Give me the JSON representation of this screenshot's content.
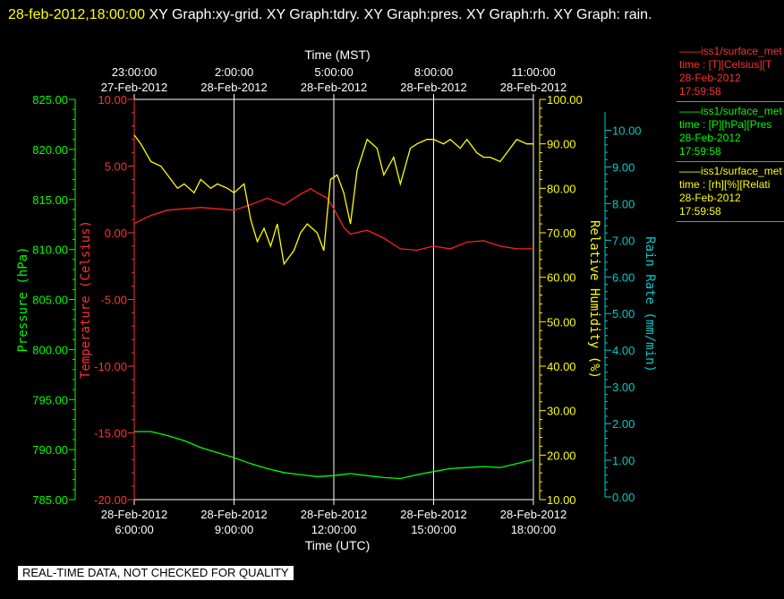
{
  "title": {
    "date": "28-feb-2012,18:00:00",
    "text": "XY Graph:xy-grid.  XY Graph:tdry.  XY Graph:pres.  XY Graph:rh.  XY Graph: rain."
  },
  "footer": "REAL-TIME DATA, NOT CHECKED FOR QUALITY",
  "legend": [
    {
      "lines": [
        "——iss1/surface_met",
        "time : [T][Celsius][T",
        "28-Feb-2012",
        "17:59:58"
      ],
      "color": "#ff3030"
    },
    {
      "lines": [
        "——iss1/surface_met",
        "time : [P][hPa][Pres",
        "28-Feb-2012",
        "17:59:58"
      ],
      "color": "#00ff00"
    },
    {
      "lines": [
        "——iss1/surface_met",
        "time : [rh][%][Relati",
        "28-Feb-2012",
        "17:59:58"
      ],
      "color": "#ffff00"
    }
  ],
  "chart_data": {
    "type": "line",
    "x_top_label": "Time (MST)",
    "x_bottom_label": "Time (UTC)",
    "x_range_utc_hours": [
      6,
      18
    ],
    "x_ticks_bottom": [
      {
        "hour": 6,
        "date": "28-Feb-2012",
        "time": "6:00:00"
      },
      {
        "hour": 9,
        "date": "28-Feb-2012",
        "time": "9:00:00"
      },
      {
        "hour": 12,
        "date": "28-Feb-2012",
        "time": "12:00:00"
      },
      {
        "hour": 15,
        "date": "28-Feb-2012",
        "time": "15:00:00"
      },
      {
        "hour": 18,
        "date": "28-Feb-2012",
        "time": "18:00:00"
      }
    ],
    "x_ticks_top": [
      {
        "hour": 6,
        "time": "23:00:00",
        "date": "27-Feb-2012"
      },
      {
        "hour": 9,
        "time": "2:00:00",
        "date": "28-Feb-2012"
      },
      {
        "hour": 12,
        "time": "5:00:00",
        "date": "28-Feb-2012"
      },
      {
        "hour": 15,
        "time": "8:00:00",
        "date": "28-Feb-2012"
      },
      {
        "hour": 18,
        "time": "11:00:00",
        "date": "28-Feb-2012"
      }
    ],
    "grid": true,
    "axes": {
      "pressure": {
        "label": "Pressure (hPa)",
        "range": [
          785,
          825
        ],
        "ticks": [
          "785.00",
          "790.00",
          "795.00",
          "800.00",
          "805.00",
          "810.00",
          "815.00",
          "820.00",
          "825.00"
        ],
        "color": "#00ff00",
        "side": "left"
      },
      "temperature": {
        "label": "Temperature (Celsius)",
        "range": [
          -20,
          10
        ],
        "ticks": [
          "-20.00",
          "-15.00",
          "-10.00",
          "-5.00",
          "0.00",
          "5.00",
          "10.00"
        ],
        "color": "#ff3030",
        "side": "left"
      },
      "rh": {
        "label": "Relative Humidity (%)",
        "range": [
          10,
          100
        ],
        "ticks": [
          "10.00",
          "20.00",
          "30.00",
          "40.00",
          "50.00",
          "60.00",
          "70.00",
          "80.00",
          "90.00",
          "100.00"
        ],
        "color": "#ffff00",
        "side": "right"
      },
      "rain": {
        "label": "Rain Rate (mm/min)",
        "range": [
          0,
          10.5
        ],
        "ticks": [
          "0.00",
          "1.00",
          "2.00",
          "3.00",
          "4.00",
          "5.00",
          "6.00",
          "7.00",
          "8.00",
          "9.00",
          "10.00"
        ],
        "color": "#00cccc",
        "side": "right"
      }
    },
    "series": [
      {
        "axis": "temperature",
        "color": "#ff2020",
        "x": [
          6.0,
          6.5,
          7.0,
          7.5,
          8.0,
          8.5,
          9.0,
          9.5,
          10.0,
          10.5,
          11.0,
          11.3,
          11.5,
          11.8,
          12.0,
          12.3,
          12.5,
          13.0,
          13.5,
          14.0,
          14.5,
          15.0,
          15.5,
          16.0,
          16.5,
          17.0,
          17.5,
          18.0
        ],
        "y": [
          0.7,
          1.3,
          1.7,
          1.8,
          1.9,
          1.8,
          1.7,
          2.1,
          2.6,
          2.1,
          2.9,
          3.3,
          3.0,
          2.6,
          1.8,
          0.4,
          -0.1,
          0.2,
          -0.4,
          -1.2,
          -1.3,
          -1.0,
          -1.2,
          -0.7,
          -0.6,
          -1.0,
          -1.2,
          -1.2
        ]
      },
      {
        "axis": "pressure",
        "color": "#00ff00",
        "x": [
          6.0,
          6.5,
          7.0,
          7.5,
          8.0,
          8.5,
          9.0,
          9.5,
          10.0,
          10.5,
          11.0,
          11.5,
          12.0,
          12.5,
          13.0,
          13.5,
          14.0,
          14.5,
          15.0,
          15.5,
          16.0,
          16.5,
          17.0,
          17.5,
          18.0
        ],
        "y": [
          791.8,
          791.8,
          791.4,
          790.9,
          790.2,
          789.7,
          789.2,
          788.6,
          788.1,
          787.7,
          787.5,
          787.3,
          787.4,
          787.6,
          787.4,
          787.2,
          787.1,
          787.5,
          787.8,
          788.1,
          788.2,
          788.3,
          788.2,
          788.6,
          789.0
        ]
      },
      {
        "axis": "rh",
        "color": "#ffff00",
        "x": [
          6.0,
          6.2,
          6.5,
          6.8,
          7.0,
          7.3,
          7.5,
          7.8,
          8.0,
          8.3,
          8.5,
          8.8,
          9.0,
          9.3,
          9.5,
          9.7,
          9.9,
          10.1,
          10.3,
          10.5,
          10.8,
          11.0,
          11.2,
          11.5,
          11.7,
          11.9,
          12.1,
          12.3,
          12.5,
          12.7,
          13.0,
          13.3,
          13.5,
          13.8,
          14.0,
          14.3,
          14.5,
          14.8,
          15.0,
          15.3,
          15.5,
          15.8,
          16.0,
          16.3,
          16.5,
          16.7,
          17.0,
          17.2,
          17.5,
          17.8,
          18.0
        ],
        "y": [
          92,
          90,
          86,
          85,
          83,
          80,
          81,
          79,
          82,
          80,
          81,
          80,
          79,
          81,
          73,
          68,
          71,
          67,
          72,
          63,
          66,
          70,
          72,
          70,
          66,
          82,
          83,
          79,
          72,
          84,
          91,
          89,
          83,
          87,
          81,
          89,
          90,
          91,
          91,
          90,
          91,
          89,
          91,
          88,
          87,
          87,
          86,
          88,
          91,
          90,
          90
        ]
      }
    ]
  }
}
